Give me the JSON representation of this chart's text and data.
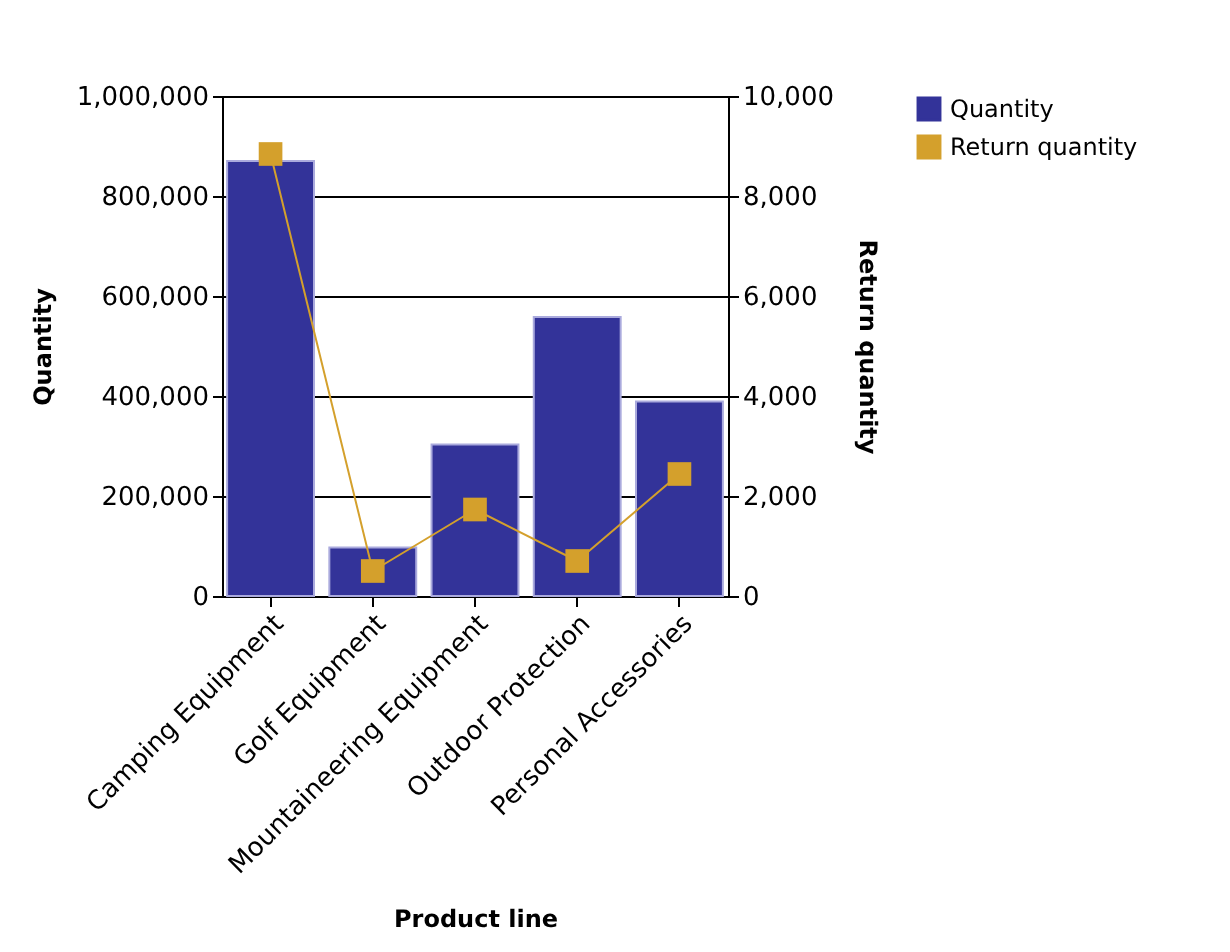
{
  "chart_data": {
    "type": "bar",
    "categories": [
      "Camping Equipment",
      "Golf Equipment",
      "Mountaineering Equipment",
      "Outdoor Protection",
      "Personal Accessories"
    ],
    "xlabel": "Product line",
    "ylabel": "Quantity",
    "y2label": "Return quantity",
    "ylim": [
      0,
      1000000
    ],
    "yticks": [
      0,
      {
        "value": 200000,
        "label": "200,000"
      },
      {
        "value": 400000,
        "label": "400,000"
      },
      {
        "value": 600000,
        "label": "600,000"
      },
      {
        "value": 800000,
        "label": "800,000"
      },
      {
        "value": 1000000,
        "label": "1,000,000"
      }
    ],
    "y2lim": [
      0,
      10000
    ],
    "y2ticks": [
      0,
      {
        "value": 2000,
        "label": "2,000"
      },
      {
        "value": 4000,
        "label": "4,000"
      },
      {
        "value": 6000,
        "label": "6,000"
      },
      {
        "value": 8000,
        "label": "8,000"
      },
      {
        "value": 10000,
        "label": "10,000"
      }
    ],
    "grid": "y",
    "legend": "top right",
    "series": [
      {
        "name": "Quantity",
        "color": "#333399",
        "values": [
          870000,
          97000,
          303000,
          558000,
          389000
        ]
      },
      {
        "name": "Return quantity",
        "type": "line",
        "axis": "y2",
        "marker": "square",
        "color": "#d4a02c",
        "values": [
          8840,
          500,
          1730,
          700,
          2440
        ]
      }
    ]
  }
}
